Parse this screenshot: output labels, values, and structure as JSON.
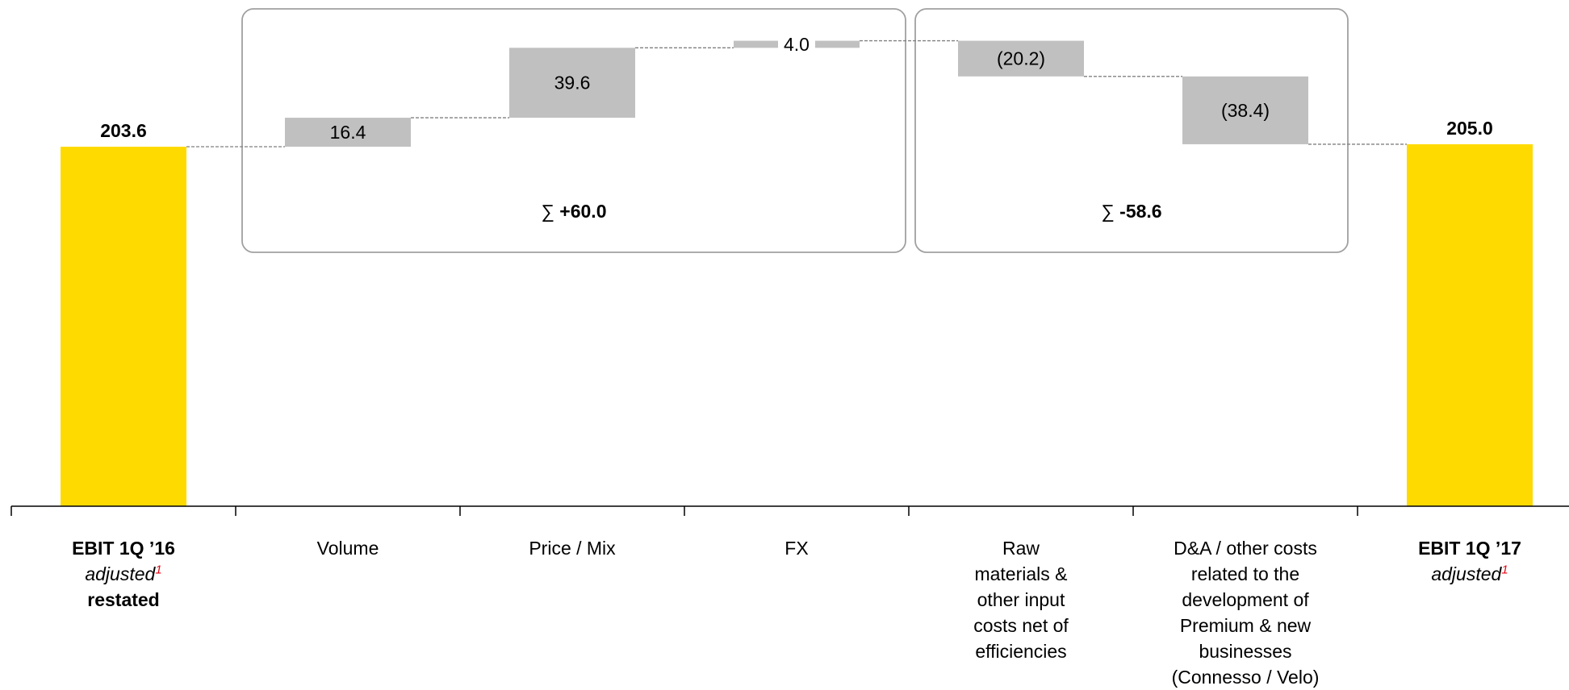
{
  "chart_data": {
    "type": "bar",
    "subtype": "waterfall",
    "categories": [
      "EBIT 1Q ’16 adjusted1 restated",
      "Volume",
      "Price / Mix",
      "FX",
      "Raw materials & other input costs net of efficiencies",
      "D&A / other costs related to the development of Premium & new businesses (Connesso / Velo)",
      "EBIT 1Q ’17 adjusted1"
    ],
    "values": [
      203.6,
      16.4,
      39.6,
      4.0,
      -20.2,
      -38.4,
      205.0
    ],
    "measures": [
      "total",
      "relative",
      "relative",
      "relative",
      "relative",
      "relative",
      "total"
    ],
    "data_labels": [
      "203.6",
      "16.4",
      "39.6",
      "4.0",
      "(20.2)",
      "(38.4)",
      "205.0"
    ],
    "category_labels": [
      {
        "lines": [
          {
            "text": "EBIT 1Q ’16",
            "style": "bold"
          },
          {
            "text": "adjusted",
            "style": "italic",
            "footnote": "1"
          },
          {
            "text": "restated",
            "style": "bold"
          }
        ]
      },
      {
        "lines": [
          {
            "text": "Volume",
            "style": "normal"
          }
        ]
      },
      {
        "lines": [
          {
            "text": "Price / Mix",
            "style": "normal"
          }
        ]
      },
      {
        "lines": [
          {
            "text": "FX",
            "style": "normal"
          }
        ]
      },
      {
        "lines": [
          {
            "text": "Raw",
            "style": "normal"
          },
          {
            "text": "materials &",
            "style": "normal"
          },
          {
            "text": "other input",
            "style": "normal"
          },
          {
            "text": "costs net of",
            "style": "normal"
          },
          {
            "text": "efficiencies",
            "style": "normal"
          }
        ]
      },
      {
        "lines": [
          {
            "text": "D&A / other costs",
            "style": "normal"
          },
          {
            "text": "related to the",
            "style": "normal"
          },
          {
            "text": "development of",
            "style": "normal"
          },
          {
            "text": "Premium & new",
            "style": "normal"
          },
          {
            "text": "businesses",
            "style": "normal"
          },
          {
            "text": "(Connesso / Velo)",
            "style": "normal"
          }
        ]
      },
      {
        "lines": [
          {
            "text": "EBIT 1Q ’17",
            "style": "bold"
          },
          {
            "text": "adjusted",
            "style": "italic",
            "footnote": "1"
          }
        ]
      }
    ],
    "groups": [
      {
        "label_symbol": "∑",
        "label_value": "+60.0",
        "categories": [
          "Volume",
          "Price / Mix",
          "FX"
        ]
      },
      {
        "label_symbol": "∑",
        "label_value": "-58.6",
        "categories": [
          "Raw materials & other input costs net of efficiencies",
          "D&A / other costs related to the development of Premium & new businesses (Connesso / Velo)"
        ]
      }
    ],
    "colors": {
      "total": "#FFDA00",
      "delta": "#C0C0C0",
      "footnote": "#E30613",
      "axis": "#000000",
      "connector": "#808080",
      "group_border": "#A0A0A0"
    },
    "ylim": [
      0,
      262
    ],
    "grid": false,
    "legend": "none",
    "title": "",
    "xlabel": "",
    "ylabel": ""
  }
}
